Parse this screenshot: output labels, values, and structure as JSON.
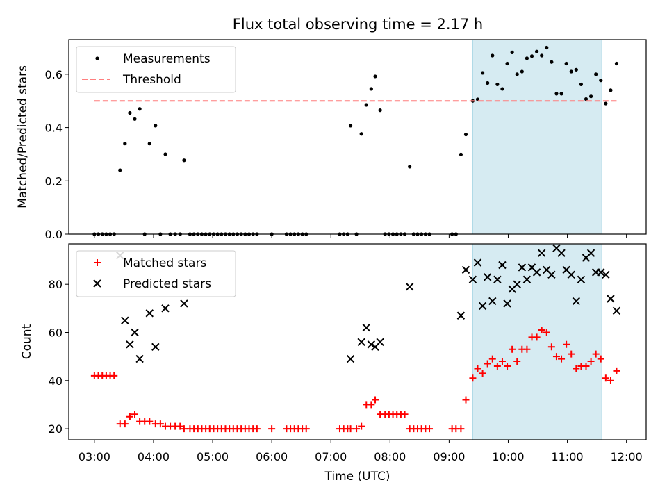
{
  "chart_data": [
    {
      "type": "scatter",
      "title": "Flux total observing time = 2.17 h",
      "xlabel": "",
      "ylabel": "Matched/Predicted stars",
      "xlim": [
        "02:34",
        "12:20"
      ],
      "ylim": [
        0,
        0.73
      ],
      "yticks": [
        0.0,
        0.2,
        0.4,
        0.6
      ],
      "ytick_labels": [
        "0.0",
        "0.2",
        "0.4",
        "0.6"
      ],
      "highlight_span": [
        "09:24",
        "11:35"
      ],
      "legend": "top-left",
      "series": [
        {
          "name": "Measurements",
          "kind": "points",
          "color": "#000000",
          "points": [
            [
              "03:00",
              0
            ],
            [
              "03:04",
              0
            ],
            [
              "03:08",
              0
            ],
            [
              "03:12",
              0
            ],
            [
              "03:16",
              0
            ],
            [
              "03:20",
              0
            ],
            [
              "03:26",
              0.24
            ],
            [
              "03:31",
              0.34
            ],
            [
              "03:36",
              0.455
            ],
            [
              "03:41",
              0.432
            ],
            [
              "03:46",
              0.47
            ],
            [
              "03:51",
              0
            ],
            [
              "03:56",
              0.34
            ],
            [
              "04:02",
              0.407
            ],
            [
              "04:07",
              0
            ],
            [
              "04:12",
              0.3
            ],
            [
              "04:17",
              0
            ],
            [
              "04:22",
              0
            ],
            [
              "04:27",
              0
            ],
            [
              "04:31",
              0.277
            ],
            [
              "04:37",
              0
            ],
            [
              "04:41",
              0
            ],
            [
              "04:45",
              0
            ],
            [
              "04:49",
              0
            ],
            [
              "04:53",
              0
            ],
            [
              "04:57",
              0
            ],
            [
              "05:01",
              0
            ],
            [
              "05:05",
              0
            ],
            [
              "05:09",
              0
            ],
            [
              "05:13",
              0
            ],
            [
              "05:17",
              0
            ],
            [
              "05:21",
              0
            ],
            [
              "05:25",
              0
            ],
            [
              "05:29",
              0
            ],
            [
              "05:33",
              0
            ],
            [
              "05:37",
              0
            ],
            [
              "05:41",
              0
            ],
            [
              "05:45",
              0
            ],
            [
              "06:00",
              0
            ],
            [
              "06:15",
              0
            ],
            [
              "06:19",
              0
            ],
            [
              "06:23",
              0
            ],
            [
              "06:27",
              0
            ],
            [
              "06:31",
              0
            ],
            [
              "06:35",
              0
            ],
            [
              "07:09",
              0
            ],
            [
              "07:13",
              0
            ],
            [
              "07:17",
              0
            ],
            [
              "07:20",
              0.407
            ],
            [
              "07:26",
              0
            ],
            [
              "07:31",
              0.376
            ],
            [
              "07:36",
              0.485
            ],
            [
              "07:41",
              0.545
            ],
            [
              "07:45",
              0.592
            ],
            [
              "07:50",
              0.465
            ],
            [
              "07:55",
              0
            ],
            [
              "07:59",
              0
            ],
            [
              "08:03",
              0
            ],
            [
              "08:07",
              0
            ],
            [
              "08:11",
              0
            ],
            [
              "08:15",
              0
            ],
            [
              "08:20",
              0.253
            ],
            [
              "08:24",
              0
            ],
            [
              "08:28",
              0
            ],
            [
              "08:32",
              0
            ],
            [
              "08:36",
              0
            ],
            [
              "08:40",
              0
            ],
            [
              "09:03",
              0
            ],
            [
              "09:07",
              0
            ],
            [
              "09:12",
              0.299
            ],
            [
              "09:17",
              0.374
            ],
            [
              "09:24",
              0.5
            ],
            [
              "09:29",
              0.506
            ],
            [
              "09:34",
              0.605
            ],
            [
              "09:39",
              0.567
            ],
            [
              "09:44",
              0.67
            ],
            [
              "09:49",
              0.562
            ],
            [
              "09:54",
              0.545
            ],
            [
              "09:59",
              0.64
            ],
            [
              "10:04",
              0.682
            ],
            [
              "10:09",
              0.6
            ],
            [
              "10:14",
              0.61
            ],
            [
              "10:19",
              0.66
            ],
            [
              "10:24",
              0.668
            ],
            [
              "10:29",
              0.685
            ],
            [
              "10:34",
              0.67
            ],
            [
              "10:39",
              0.7
            ],
            [
              "10:44",
              0.646
            ],
            [
              "10:49",
              0.527
            ],
            [
              "10:54",
              0.527
            ],
            [
              "10:59",
              0.64
            ],
            [
              "11:04",
              0.61
            ],
            [
              "11:09",
              0.617
            ],
            [
              "11:14",
              0.562
            ],
            [
              "11:19",
              0.507
            ],
            [
              "11:24",
              0.517
            ],
            [
              "11:29",
              0.6
            ],
            [
              "11:34",
              0.577
            ],
            [
              "11:39",
              0.49
            ],
            [
              "11:44",
              0.54
            ],
            [
              "11:50",
              0.64
            ]
          ]
        },
        {
          "name": "Threshold",
          "kind": "dashed-line",
          "color": "#ff7f7f",
          "y": 0.5,
          "x_range": [
            "03:00",
            "11:50"
          ]
        }
      ]
    },
    {
      "type": "scatter",
      "title": "",
      "xlabel": "Time (UTC)",
      "ylabel": "Count",
      "xlim": [
        "02:34",
        "12:20"
      ],
      "ylim": [
        15.4,
        96.8
      ],
      "yticks": [
        20,
        40,
        60,
        80
      ],
      "ytick_labels": [
        "20",
        "40",
        "60",
        "80"
      ],
      "xticks": [
        "03:00",
        "04:00",
        "05:00",
        "06:00",
        "07:00",
        "08:00",
        "09:00",
        "10:00",
        "11:00",
        "12:00"
      ],
      "highlight_span": [
        "09:24",
        "11:35"
      ],
      "legend": "top-left",
      "series": [
        {
          "name": "Matched stars",
          "marker": "plus",
          "color": "#ff0000",
          "points": [
            [
              "03:00",
              42
            ],
            [
              "03:04",
              42
            ],
            [
              "03:08",
              42
            ],
            [
              "03:12",
              42
            ],
            [
              "03:16",
              42
            ],
            [
              "03:20",
              42
            ],
            [
              "03:26",
              22
            ],
            [
              "03:31",
              22
            ],
            [
              "03:36",
              25
            ],
            [
              "03:41",
              26
            ],
            [
              "03:46",
              23
            ],
            [
              "03:51",
              23
            ],
            [
              "03:56",
              23
            ],
            [
              "04:02",
              22
            ],
            [
              "04:07",
              22
            ],
            [
              "04:12",
              21
            ],
            [
              "04:17",
              21
            ],
            [
              "04:22",
              21
            ],
            [
              "04:27",
              21
            ],
            [
              "04:31",
              20
            ],
            [
              "04:37",
              20
            ],
            [
              "04:41",
              20
            ],
            [
              "04:45",
              20
            ],
            [
              "04:49",
              20
            ],
            [
              "04:53",
              20
            ],
            [
              "04:57",
              20
            ],
            [
              "05:01",
              20
            ],
            [
              "05:05",
              20
            ],
            [
              "05:09",
              20
            ],
            [
              "05:13",
              20
            ],
            [
              "05:17",
              20
            ],
            [
              "05:21",
              20
            ],
            [
              "05:25",
              20
            ],
            [
              "05:29",
              20
            ],
            [
              "05:33",
              20
            ],
            [
              "05:37",
              20
            ],
            [
              "05:41",
              20
            ],
            [
              "05:45",
              20
            ],
            [
              "06:00",
              20
            ],
            [
              "06:15",
              20
            ],
            [
              "06:19",
              20
            ],
            [
              "06:23",
              20
            ],
            [
              "06:27",
              20
            ],
            [
              "06:31",
              20
            ],
            [
              "06:35",
              20
            ],
            [
              "07:09",
              20
            ],
            [
              "07:13",
              20
            ],
            [
              "07:17",
              20
            ],
            [
              "07:20",
              20
            ],
            [
              "07:26",
              20
            ],
            [
              "07:31",
              21
            ],
            [
              "07:36",
              30
            ],
            [
              "07:41",
              30
            ],
            [
              "07:45",
              32
            ],
            [
              "07:50",
              26
            ],
            [
              "07:55",
              26
            ],
            [
              "07:59",
              26
            ],
            [
              "08:03",
              26
            ],
            [
              "08:07",
              26
            ],
            [
              "08:11",
              26
            ],
            [
              "08:15",
              26
            ],
            [
              "08:20",
              20
            ],
            [
              "08:24",
              20
            ],
            [
              "08:28",
              20
            ],
            [
              "08:32",
              20
            ],
            [
              "08:36",
              20
            ],
            [
              "08:40",
              20
            ],
            [
              "09:03",
              20
            ],
            [
              "09:07",
              20
            ],
            [
              "09:12",
              20
            ],
            [
              "09:17",
              32
            ],
            [
              "09:24",
              41
            ],
            [
              "09:29",
              45
            ],
            [
              "09:34",
              43
            ],
            [
              "09:39",
              47
            ],
            [
              "09:44",
              49
            ],
            [
              "09:49",
              46
            ],
            [
              "09:54",
              48
            ],
            [
              "09:59",
              46
            ],
            [
              "10:04",
              53
            ],
            [
              "10:09",
              48
            ],
            [
              "10:14",
              53
            ],
            [
              "10:19",
              53
            ],
            [
              "10:24",
              58
            ],
            [
              "10:29",
              58
            ],
            [
              "10:34",
              61
            ],
            [
              "10:39",
              60
            ],
            [
              "10:44",
              54
            ],
            [
              "10:49",
              50
            ],
            [
              "10:54",
              49
            ],
            [
              "10:59",
              55
            ],
            [
              "11:04",
              51
            ],
            [
              "11:09",
              45
            ],
            [
              "11:14",
              46
            ],
            [
              "11:19",
              46
            ],
            [
              "11:24",
              48
            ],
            [
              "11:29",
              51
            ],
            [
              "11:34",
              49
            ],
            [
              "11:39",
              41
            ],
            [
              "11:44",
              40
            ],
            [
              "11:50",
              44
            ]
          ]
        },
        {
          "name": "Predicted stars",
          "marker": "x",
          "color": "#000000",
          "points": [
            [
              "03:26",
              92
            ],
            [
              "03:31",
              65
            ],
            [
              "03:36",
              55
            ],
            [
              "03:41",
              60
            ],
            [
              "03:46",
              49
            ],
            [
              "03:56",
              68
            ],
            [
              "04:02",
              54
            ],
            [
              "04:12",
              70
            ],
            [
              "04:31",
              72
            ],
            [
              "07:20",
              49
            ],
            [
              "07:31",
              56
            ],
            [
              "07:36",
              62
            ],
            [
              "07:41",
              55
            ],
            [
              "07:45",
              54
            ],
            [
              "07:50",
              56
            ],
            [
              "08:20",
              79
            ],
            [
              "09:12",
              67
            ],
            [
              "09:17",
              86
            ],
            [
              "09:24",
              82
            ],
            [
              "09:29",
              89
            ],
            [
              "09:34",
              71
            ],
            [
              "09:39",
              83
            ],
            [
              "09:44",
              73
            ],
            [
              "09:49",
              82
            ],
            [
              "09:54",
              88
            ],
            [
              "09:59",
              72
            ],
            [
              "10:04",
              78
            ],
            [
              "10:09",
              80
            ],
            [
              "10:14",
              87
            ],
            [
              "10:19",
              82
            ],
            [
              "10:24",
              87
            ],
            [
              "10:29",
              85
            ],
            [
              "10:34",
              93
            ],
            [
              "10:39",
              86
            ],
            [
              "10:44",
              84
            ],
            [
              "10:49",
              95
            ],
            [
              "10:54",
              93
            ],
            [
              "10:59",
              86
            ],
            [
              "11:04",
              84
            ],
            [
              "11:09",
              73
            ],
            [
              "11:14",
              82
            ],
            [
              "11:19",
              91
            ],
            [
              "11:24",
              93
            ],
            [
              "11:29",
              85
            ],
            [
              "11:34",
              85
            ],
            [
              "11:39",
              84
            ],
            [
              "11:44",
              74
            ],
            [
              "11:50",
              69
            ]
          ]
        }
      ]
    }
  ]
}
